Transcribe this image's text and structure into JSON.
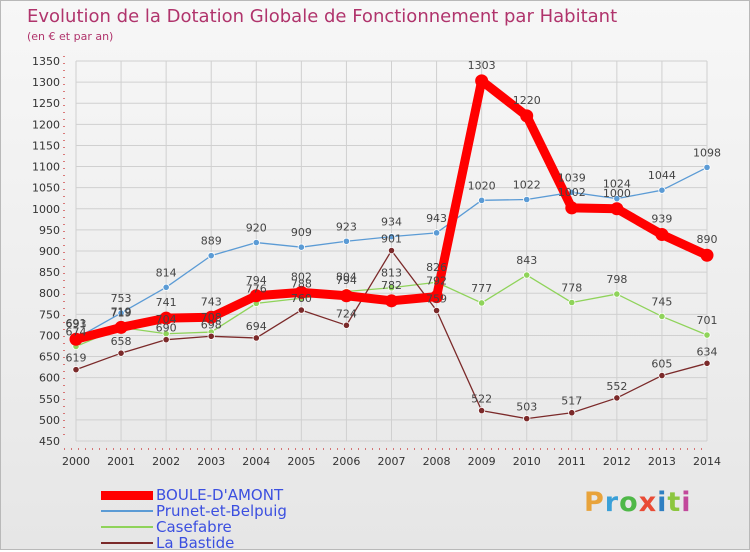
{
  "title": "Evolution de la Dotation Globale de Fonctionnement par Habitant",
  "subtitle": "(en € et par an)",
  "logo": {
    "text": "Proxiti",
    "colors": [
      "#e8a33b",
      "#3aa0d8",
      "#4fb848",
      "#e94b35",
      "#2f7fc2",
      "#8cc63f",
      "#c2489b"
    ]
  },
  "chart_data": {
    "type": "line",
    "title": "Evolution de la Dotation Globale de Fonctionnement par Habitant",
    "subtitle": "(en € et par an)",
    "xlabel": "",
    "ylabel": "",
    "categories": [
      "2000",
      "2001",
      "2002",
      "2003",
      "2004",
      "2005",
      "2006",
      "2007",
      "2008",
      "2009",
      "2010",
      "2011",
      "2012",
      "2013",
      "2014"
    ],
    "ylim": [
      450,
      1350
    ],
    "yticks": [
      450,
      500,
      550,
      600,
      650,
      700,
      750,
      800,
      850,
      900,
      950,
      1000,
      1050,
      1100,
      1150,
      1200,
      1250,
      1300,
      1350
    ],
    "grid": true,
    "legend_position": "bottom-left",
    "series": [
      {
        "name": "Prunet-et-Belpuig",
        "color": "#5b9bd5",
        "values": [
          693,
          753,
          814,
          889,
          920,
          909,
          923,
          934,
          943,
          1020,
          1022,
          1039,
          1024,
          1044,
          1098
        ]
      },
      {
        "name": "Casefabre",
        "color": "#8fd35a",
        "values": [
          674,
          719,
          704,
          708,
          776,
          788,
          804,
          813,
          826,
          777,
          843,
          778,
          798,
          745,
          701
        ]
      },
      {
        "name": "La Bastide",
        "color": "#7b2a2a",
        "values": [
          619,
          658,
          690,
          698,
          694,
          760,
          724,
          901,
          759,
          522,
          503,
          517,
          552,
          605,
          634
        ]
      },
      {
        "name": "BOULE-D'AMONT",
        "color": "#ff0000",
        "values": [
          691,
          719,
          741,
          743,
          794,
          802,
          794,
          782,
          792,
          1303,
          1220,
          1002,
          1000,
          939,
          890
        ]
      }
    ],
    "legend_order": [
      "BOULE-D'AMONT",
      "Prunet-et-Belpuig",
      "Casefabre",
      "La Bastide"
    ]
  }
}
